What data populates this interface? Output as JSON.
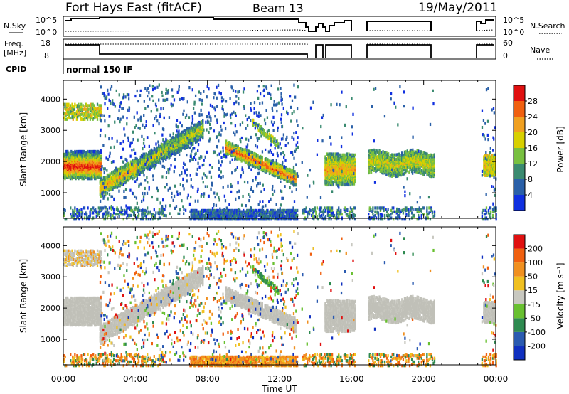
{
  "header": {
    "title": "Fort Hays East (fitACF)",
    "beam": "Beam 13",
    "date": "19/May/2011"
  },
  "status_panels": {
    "nsky_label": "N.Sky",
    "nsearch_label": "N.Search",
    "count_ticks": [
      "10^5",
      "10^0"
    ],
    "freq_label": "Freq.",
    "freq_unit": "[MHz]",
    "freq_ticks": [
      "18",
      "8"
    ],
    "nave_label": "Nave",
    "nave_ticks": [
      "60",
      "0"
    ],
    "cpid_label": "CPID",
    "cpid_value": "normal 150 IF"
  },
  "chart_data": [
    {
      "type": "heatmap",
      "panel": "power",
      "ylabel": "Slant Range [km]",
      "yticks": [
        1000,
        2000,
        3000,
        4000
      ],
      "ylim": [
        180,
        4600
      ],
      "xlabel": "Time UT",
      "xlim_hours": [
        0,
        24
      ],
      "xticks": [
        "00:00",
        "04:00",
        "08:00",
        "12:00",
        "16:00",
        "20:00",
        "00:00"
      ],
      "colorbar": {
        "label": "Power [dB]",
        "ticks": [
          4,
          8,
          12,
          16,
          20,
          24,
          28
        ],
        "colors": [
          "#1030e0",
          "#2a60a8",
          "#3a8a70",
          "#78c040",
          "#d8d000",
          "#f0a020",
          "#f06010",
          "#e01010"
        ]
      },
      "echo_regions": [
        {
          "name": "0-2 UT band",
          "t": [
            0.0,
            2.0
          ],
          "r": [
            1600,
            2300
          ],
          "peak_dB": 26
        },
        {
          "name": "rising arc 2-7.5 UT",
          "t": [
            2.0,
            7.5
          ],
          "r": [
            1100,
            3200
          ],
          "peak_dB": 18
        },
        {
          "name": "falling arc 9-12.9 UT",
          "t": [
            9.0,
            12.9
          ],
          "r": [
            1300,
            2600
          ],
          "peak_dB": 22
        },
        {
          "name": "patch 14.5-16.2 UT",
          "t": [
            14.5,
            16.2
          ],
          "r": [
            1300,
            2200
          ],
          "peak_dB": 20
        },
        {
          "name": "band 16.9-20.6 UT",
          "t": [
            16.9,
            20.6
          ],
          "r": [
            1500,
            2600
          ],
          "peak_dB": 18
        },
        {
          "name": "patch 23.3-24 UT",
          "t": [
            23.3,
            24.0
          ],
          "r": [
            1600,
            2200
          ],
          "peak_dB": 14
        }
      ]
    },
    {
      "type": "heatmap",
      "panel": "velocity",
      "ylabel": "Slant Range [km]",
      "yticks": [
        1000,
        2000,
        3000,
        4000
      ],
      "ylim": [
        180,
        4600
      ],
      "xlabel": "Time UT",
      "xlim_hours": [
        0,
        24
      ],
      "xticks": [
        "00:00",
        "04:00",
        "08:00",
        "12:00",
        "16:00",
        "20:00",
        "00:00"
      ],
      "colorbar": {
        "label": "Velocity [m s⁻¹]",
        "ticks": [
          200,
          100,
          50,
          15,
          -15,
          -50,
          -100,
          -200
        ],
        "colors": [
          "#1030c0",
          "#2a5ab0",
          "#2e8a50",
          "#68c030",
          "#c8c8c0",
          "#f0c020",
          "#f09020",
          "#f06010",
          "#e01010"
        ]
      },
      "ground_scatter_color": "#c0c0b8"
    }
  ]
}
